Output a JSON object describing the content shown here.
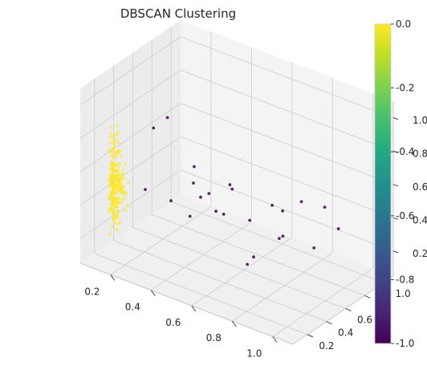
{
  "chart_data": {
    "type": "scatter",
    "projection": "3d",
    "title": "DBSCAN Clustering",
    "xlabel": "",
    "ylabel": "",
    "zlabel": "",
    "x_ticks": [
      "0.2",
      "0.4",
      "0.6",
      "0.8",
      "1.0"
    ],
    "y_ticks": [
      "0.2",
      "0.4",
      "0.6",
      "0.8",
      "1.0"
    ],
    "z_ticks": [
      "0.2",
      "0.4",
      "0.6",
      "0.8",
      "1.0"
    ],
    "xlim": [
      0.05,
      1.1
    ],
    "ylim": [
      0.05,
      1.1
    ],
    "zlim": [
      0.05,
      1.1
    ],
    "grid": true,
    "colorbar": {
      "colormap": "viridis",
      "range": [
        -1.0,
        0.0
      ],
      "ticks": [
        "0.0",
        "-0.2",
        "-0.4",
        "-0.6",
        "-0.8",
        "-1.0"
      ]
    },
    "cluster_colors": {
      "0": "#fde725",
      "-1": "#440154"
    },
    "series": [
      {
        "label_value": 0,
        "points": []
      },
      {
        "label_value": -1,
        "points": []
      }
    ],
    "notes_points_estimated": true
  }
}
